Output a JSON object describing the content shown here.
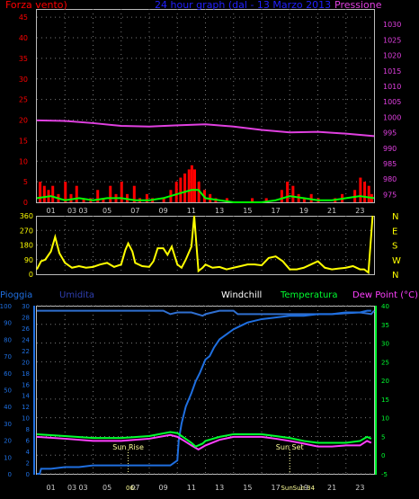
{
  "chart_data": [
    {
      "type": "bar",
      "title": "24 hour graph (dal - 13 Marzo 2013",
      "left_label": "Forza vento)",
      "right_label": "Pressione",
      "left_ticks": [
        "0",
        "5",
        "10",
        "15",
        "20",
        "25",
        "30",
        "35",
        "40",
        "45"
      ],
      "right_ticks": [
        "975",
        "980",
        "985",
        "990",
        "995",
        "1000",
        "1005",
        "1010",
        "1015",
        "1020",
        "1025",
        "1030"
      ],
      "ylim_left": [
        0,
        47
      ],
      "ylim_right": [
        972.5,
        1035
      ],
      "pressure": [
        [
          0,
          999.0
        ],
        [
          2,
          998.8
        ],
        [
          4,
          998.1
        ],
        [
          6,
          997.2
        ],
        [
          8,
          997.0
        ],
        [
          10,
          997.4
        ],
        [
          12,
          997.7
        ],
        [
          14,
          997.0
        ],
        [
          16,
          995.9
        ],
        [
          18,
          995.1
        ],
        [
          20,
          995.3
        ],
        [
          22,
          994.7
        ],
        [
          24,
          993.9
        ]
      ],
      "gust_bars": [
        [
          0.2,
          5
        ],
        [
          0.5,
          4
        ],
        [
          0.8,
          3
        ],
        [
          1.1,
          4
        ],
        [
          1.5,
          2
        ],
        [
          2.0,
          5
        ],
        [
          2.4,
          2
        ],
        [
          2.8,
          4
        ],
        [
          3.3,
          1
        ],
        [
          3.8,
          1
        ],
        [
          4.3,
          3
        ],
        [
          4.7,
          1
        ],
        [
          5.2,
          4
        ],
        [
          5.6,
          2
        ],
        [
          6.0,
          5
        ],
        [
          6.4,
          2
        ],
        [
          6.9,
          4
        ],
        [
          7.3,
          1
        ],
        [
          7.8,
          2
        ],
        [
          8.2,
          1
        ],
        [
          9.0,
          1
        ],
        [
          9.5,
          3
        ],
        [
          9.9,
          5
        ],
        [
          10.2,
          6
        ],
        [
          10.5,
          7
        ],
        [
          10.8,
          8
        ],
        [
          11.0,
          9
        ],
        [
          11.2,
          8
        ],
        [
          11.5,
          5
        ],
        [
          11.9,
          3
        ],
        [
          12.3,
          2
        ],
        [
          12.7,
          1
        ],
        [
          13.5,
          1
        ],
        [
          15.3,
          1
        ],
        [
          16.3,
          1
        ],
        [
          17.4,
          3
        ],
        [
          17.8,
          5
        ],
        [
          18.2,
          4
        ],
        [
          18.6,
          2
        ],
        [
          19.0,
          1
        ],
        [
          19.5,
          2
        ],
        [
          20.0,
          1
        ],
        [
          21.2,
          1
        ],
        [
          21.7,
          2
        ],
        [
          22.6,
          3
        ],
        [
          23.0,
          6
        ],
        [
          23.3,
          5
        ],
        [
          23.6,
          4
        ],
        [
          23.8,
          2
        ]
      ],
      "avg_wind": [
        [
          0,
          1
        ],
        [
          1,
          1.5
        ],
        [
          2,
          0.5
        ],
        [
          3,
          1
        ],
        [
          4,
          0.5
        ],
        [
          5,
          1
        ],
        [
          6,
          1
        ],
        [
          7,
          0.5
        ],
        [
          8,
          0.5
        ],
        [
          9,
          1
        ],
        [
          10,
          2
        ],
        [
          11,
          3
        ],
        [
          11.5,
          3
        ],
        [
          12,
          1
        ],
        [
          13,
          0.5
        ],
        [
          14,
          0
        ],
        [
          16,
          0
        ],
        [
          17,
          0.5
        ],
        [
          18,
          1.5
        ],
        [
          19,
          1
        ],
        [
          20,
          0.5
        ],
        [
          21,
          0.5
        ],
        [
          22,
          1
        ],
        [
          23,
          1.5
        ],
        [
          24,
          1
        ]
      ]
    },
    {
      "type": "line",
      "series_name": "Direzione",
      "left_ticks": [
        "0",
        "90",
        "180",
        "270",
        "360"
      ],
      "right_labels": [
        "N",
        "W",
        "S",
        "E",
        "N"
      ],
      "ylim": [
        0,
        360
      ],
      "x": [
        0,
        0.3,
        0.6,
        1,
        1.3,
        1.6,
        2,
        2.5,
        3,
        3.5,
        4,
        4.5,
        5,
        5.5,
        6,
        6.3,
        6.5,
        6.8,
        7,
        7.5,
        8,
        8.3,
        8.6,
        9,
        9.3,
        9.6,
        10,
        10.3,
        10.6,
        11,
        11.2,
        11.5,
        11.8,
        12,
        12.5,
        13,
        13.5,
        14,
        14.5,
        15,
        15.5,
        16,
        16.5,
        17,
        17.5,
        18,
        18.5,
        19,
        19.5,
        20,
        20.5,
        21,
        21.5,
        22,
        22.5,
        23,
        23.3,
        23.6,
        23.9
      ],
      "values": [
        30,
        80,
        90,
        140,
        230,
        130,
        70,
        40,
        50,
        40,
        45,
        60,
        70,
        45,
        60,
        150,
        190,
        140,
        70,
        50,
        45,
        80,
        160,
        160,
        120,
        170,
        60,
        40,
        90,
        170,
        360,
        20,
        40,
        60,
        40,
        45,
        30,
        40,
        50,
        60,
        60,
        55,
        100,
        110,
        80,
        30,
        30,
        40,
        60,
        80,
        40,
        30,
        35,
        40,
        50,
        30,
        30,
        10,
        360
      ]
    },
    {
      "type": "line",
      "legend": [
        "Pioggia",
        "Umidita",
        "Windchill",
        "Temperatura",
        "Dew Point (°C)"
      ],
      "left_ticks": [
        "0",
        "10",
        "20",
        "30",
        "40",
        "50",
        "60",
        "70",
        "80",
        "90",
        "100"
      ],
      "left2_ticks": [
        "0",
        "2",
        "4",
        "6",
        "8",
        "10",
        "12",
        "14",
        "16",
        "18",
        "20",
        "22",
        "24",
        "26",
        "28",
        "30"
      ],
      "right_ticks": [
        "-5",
        "0",
        "5",
        "10",
        "15",
        "20",
        "25",
        "30",
        "35",
        "40"
      ],
      "ylim_left": [
        0,
        100
      ],
      "ylim_right": [
        -5,
        40
      ],
      "annotations": [
        {
          "label": "Sun Rise",
          "x": 6.5
        },
        {
          "label": "Sun Set",
          "x": 18.0
        }
      ],
      "bottom_overlay_labels": [
        "06:",
        "Sun",
        "Sun 34"
      ],
      "humidity": [
        [
          0,
          97
        ],
        [
          2,
          97
        ],
        [
          4,
          97
        ],
        [
          6,
          97
        ],
        [
          8,
          97
        ],
        [
          9,
          97
        ],
        [
          9.5,
          95
        ],
        [
          10,
          96
        ],
        [
          11,
          96
        ],
        [
          11.8,
          94
        ],
        [
          12,
          95
        ],
        [
          13,
          97
        ],
        [
          14,
          97
        ],
        [
          14.3,
          95
        ],
        [
          15,
          95
        ],
        [
          17,
          95
        ],
        [
          19,
          95
        ],
        [
          21,
          95
        ],
        [
          23,
          96
        ],
        [
          23.8,
          95
        ],
        [
          24,
          97
        ]
      ],
      "rain": [
        [
          0,
          0
        ],
        [
          0.2,
          0
        ],
        [
          0.3,
          3
        ],
        [
          0.6,
          3
        ],
        [
          1,
          3
        ],
        [
          2,
          4
        ],
        [
          3,
          4
        ],
        [
          4,
          5
        ],
        [
          5,
          5
        ],
        [
          6,
          5
        ],
        [
          7,
          5
        ],
        [
          8,
          5
        ],
        [
          9,
          5
        ],
        [
          9.5,
          5
        ],
        [
          10,
          8
        ],
        [
          10.1,
          20
        ],
        [
          10.3,
          30
        ],
        [
          10.6,
          40
        ],
        [
          11,
          48
        ],
        [
          11.3,
          55
        ],
        [
          11.6,
          60
        ],
        [
          12,
          68
        ],
        [
          12.3,
          70
        ],
        [
          12.6,
          75
        ],
        [
          13,
          80
        ],
        [
          13.5,
          83
        ],
        [
          14,
          86
        ],
        [
          14.5,
          88
        ],
        [
          15,
          90
        ],
        [
          16,
          92
        ],
        [
          17,
          93
        ],
        [
          18,
          94
        ],
        [
          19,
          94
        ],
        [
          20,
          95
        ],
        [
          21,
          95
        ],
        [
          22,
          96
        ],
        [
          23,
          96
        ],
        [
          23.5,
          97
        ],
        [
          23.8,
          97
        ]
      ],
      "temperatura": [
        [
          0,
          5.6
        ],
        [
          2,
          5.1
        ],
        [
          4,
          4.6
        ],
        [
          6,
          4.6
        ],
        [
          8,
          5.1
        ],
        [
          9.5,
          6.2
        ],
        [
          10,
          5.9
        ],
        [
          10.5,
          4.6
        ],
        [
          11,
          3.3
        ],
        [
          11.3,
          2.3
        ],
        [
          11.8,
          3.1
        ],
        [
          12,
          3.8
        ],
        [
          13,
          4.9
        ],
        [
          14,
          5.6
        ],
        [
          15,
          5.6
        ],
        [
          16,
          5.6
        ],
        [
          17,
          5.1
        ],
        [
          18,
          4.6
        ],
        [
          19,
          3.8
        ],
        [
          20,
          3.3
        ],
        [
          21,
          3.3
        ],
        [
          22,
          3.3
        ],
        [
          23,
          3.8
        ],
        [
          23.5,
          4.9
        ],
        [
          23.8,
          4.4
        ]
      ],
      "dew_point": [
        [
          0,
          4.9
        ],
        [
          2,
          4.4
        ],
        [
          4,
          3.8
        ],
        [
          6,
          3.8
        ],
        [
          8,
          4.4
        ],
        [
          9.5,
          5.4
        ],
        [
          10,
          4.9
        ],
        [
          10.5,
          3.8
        ],
        [
          11,
          2.6
        ],
        [
          11.5,
          1.5
        ],
        [
          12,
          2.6
        ],
        [
          13,
          4.1
        ],
        [
          14,
          4.9
        ],
        [
          15,
          4.9
        ],
        [
          16,
          4.9
        ],
        [
          17,
          4.4
        ],
        [
          18,
          3.8
        ],
        [
          19,
          3.1
        ],
        [
          20,
          2.3
        ],
        [
          21,
          2.3
        ],
        [
          22,
          2.6
        ],
        [
          23,
          2.6
        ],
        [
          23.5,
          3.8
        ],
        [
          23.8,
          3.3
        ]
      ]
    }
  ],
  "x_tick_labels": [
    "01",
    "03",
    "03",
    "05",
    "07",
    "09",
    "11",
    "13",
    "15",
    "17",
    "19",
    "21",
    "23"
  ],
  "x_tick_hours": [
    1,
    2.5,
    3.3,
    5,
    7,
    9,
    11,
    13,
    15,
    17,
    19,
    21,
    23
  ],
  "colors": {
    "wind_label": "#ff0000",
    "title": "#2020ff",
    "pressure": "#e040e0",
    "gust": "#ff0000",
    "avg_wind": "#00ff00",
    "direction": "#ffff00",
    "rain": "#1f6fe0",
    "humidity": "#2f6fd0",
    "windchill": "#ffffff",
    "temperature": "#00ff30",
    "dew_point": "#ff40ff",
    "axis": "#cccccc"
  }
}
